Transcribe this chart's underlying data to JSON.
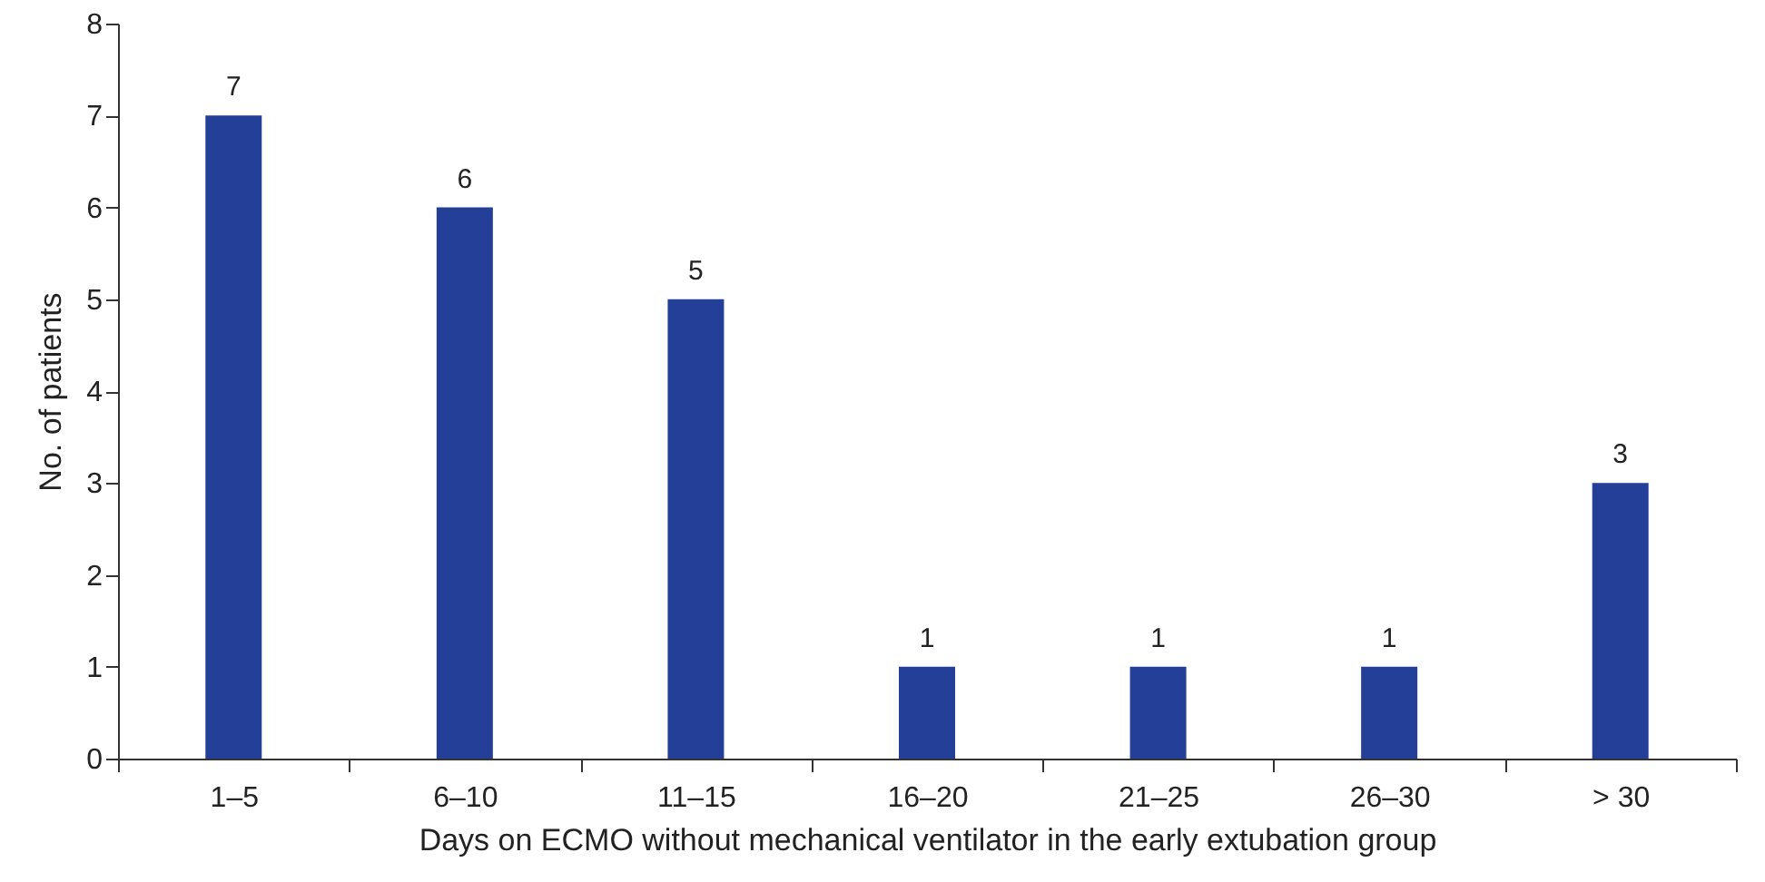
{
  "chart_data": {
    "type": "bar",
    "categories": [
      "1–5",
      "6–10",
      "11–15",
      "16–20",
      "21–25",
      "26–30",
      "> 30"
    ],
    "values": [
      7,
      6,
      5,
      1,
      1,
      1,
      3
    ],
    "color": "#233f97",
    "xlabel": "Days on ECMO without mechanical ventilator in the early extubation group",
    "ylabel": "No. of patients",
    "ylim": [
      0,
      8
    ],
    "yticks": [
      0,
      1,
      2,
      3,
      4,
      5,
      6,
      7,
      8
    ],
    "data_labels": true,
    "grid": false
  }
}
